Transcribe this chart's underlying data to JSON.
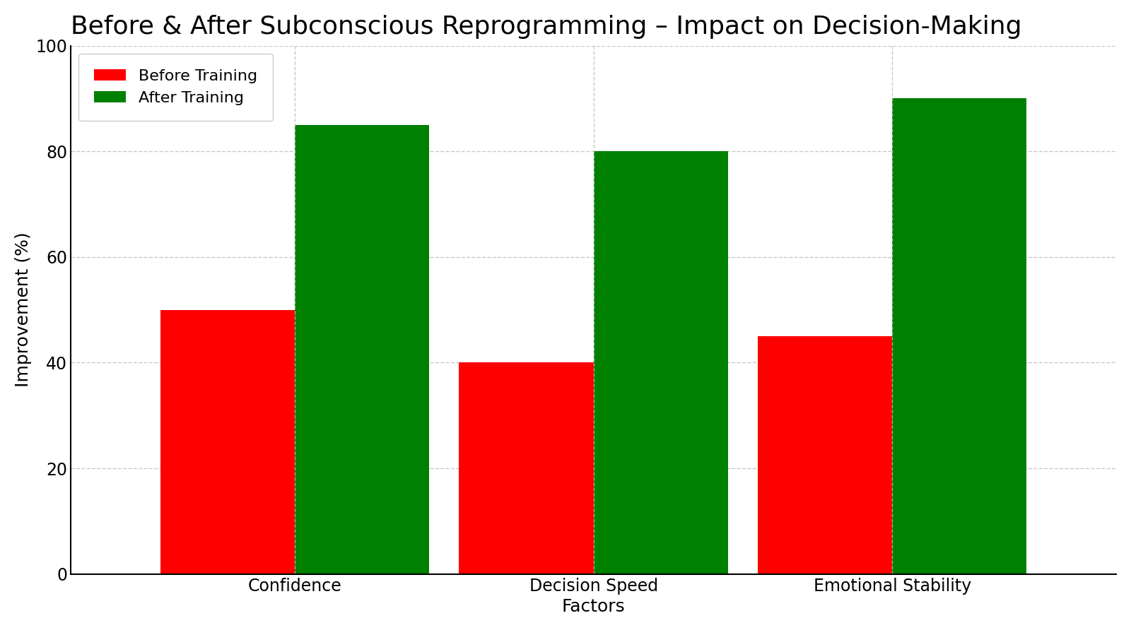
{
  "title": "Before & After Subconscious Reprogramming – Impact on Decision-Making",
  "xlabel": "Factors",
  "ylabel": "Improvement (%)",
  "categories": [
    "Confidence",
    "Decision Speed",
    "Emotional Stability"
  ],
  "before_values": [
    50,
    40,
    45
  ],
  "after_values": [
    85,
    80,
    90
  ],
  "before_color": "#ff0000",
  "after_color": "#008000",
  "before_label": "Before Training",
  "after_label": "After Training",
  "ylim": [
    0,
    100
  ],
  "yticks": [
    0,
    20,
    40,
    60,
    80,
    100
  ],
  "background_color": "#ffffff",
  "bar_width": 0.45,
  "title_fontsize": 26,
  "axis_label_fontsize": 18,
  "tick_fontsize": 17,
  "legend_fontsize": 16,
  "grid_color": "#bbbbbb",
  "grid_linestyle": "--",
  "grid_alpha": 0.8
}
